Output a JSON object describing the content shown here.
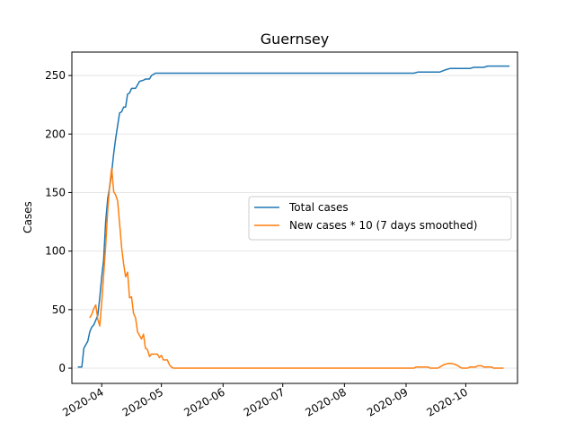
{
  "chart_data": {
    "type": "line",
    "title": "Guernsey",
    "xlabel": "",
    "ylabel": "Cases",
    "xlim": [
      "2020-03-17",
      "2020-10-27"
    ],
    "ylim": [
      -13,
      270
    ],
    "x_ticks": [
      "2020-04",
      "2020-05",
      "2020-06",
      "2020-07",
      "2020-08",
      "2020-09",
      "2020-10"
    ],
    "y_ticks": [
      0,
      50,
      100,
      150,
      200,
      250
    ],
    "grid": "horizontal",
    "legend": "center-right",
    "series": [
      {
        "name": "Total cases",
        "color": "#1f77b4",
        "points": [
          [
            "2020-03-20",
            1
          ],
          [
            "2020-03-22",
            1
          ],
          [
            "2020-03-23",
            17
          ],
          [
            "2020-03-24",
            20
          ],
          [
            "2020-03-25",
            23
          ],
          [
            "2020-03-26",
            31
          ],
          [
            "2020-03-27",
            35
          ],
          [
            "2020-03-28",
            37
          ],
          [
            "2020-03-29",
            41
          ],
          [
            "2020-03-30",
            45
          ],
          [
            "2020-03-31",
            60
          ],
          [
            "2020-04-01",
            78
          ],
          [
            "2020-04-02",
            93
          ],
          [
            "2020-04-03",
            125
          ],
          [
            "2020-04-04",
            145
          ],
          [
            "2020-04-05",
            155
          ],
          [
            "2020-04-06",
            167
          ],
          [
            "2020-04-07",
            183
          ],
          [
            "2020-04-08",
            196
          ],
          [
            "2020-04-09",
            207
          ],
          [
            "2020-04-10",
            218
          ],
          [
            "2020-04-11",
            219
          ],
          [
            "2020-04-12",
            223
          ],
          [
            "2020-04-13",
            223
          ],
          [
            "2020-04-14",
            234
          ],
          [
            "2020-04-15",
            235
          ],
          [
            "2020-04-16",
            239
          ],
          [
            "2020-04-18",
            239
          ],
          [
            "2020-04-19",
            242
          ],
          [
            "2020-04-20",
            245
          ],
          [
            "2020-04-22",
            246
          ],
          [
            "2020-04-23",
            247
          ],
          [
            "2020-04-25",
            247
          ],
          [
            "2020-04-26",
            250
          ],
          [
            "2020-04-28",
            252
          ],
          [
            "2020-09-05",
            252
          ],
          [
            "2020-09-07",
            253
          ],
          [
            "2020-09-18",
            253
          ],
          [
            "2020-09-21",
            255
          ],
          [
            "2020-09-23",
            256
          ],
          [
            "2020-10-03",
            256
          ],
          [
            "2020-10-05",
            257
          ],
          [
            "2020-10-10",
            257
          ],
          [
            "2020-10-12",
            258
          ],
          [
            "2020-10-23",
            258
          ]
        ]
      },
      {
        "name": "New cases * 10 (7 days smoothed)",
        "color": "#ff7f0e",
        "points": [
          [
            "2020-03-26",
            43
          ],
          [
            "2020-03-27",
            46
          ],
          [
            "2020-03-28",
            51
          ],
          [
            "2020-03-29",
            54
          ],
          [
            "2020-03-30",
            42
          ],
          [
            "2020-03-31",
            36
          ],
          [
            "2020-04-01",
            56
          ],
          [
            "2020-04-02",
            80
          ],
          [
            "2020-04-03",
            104
          ],
          [
            "2020-04-04",
            135
          ],
          [
            "2020-04-05",
            156
          ],
          [
            "2020-04-06",
            171
          ],
          [
            "2020-04-07",
            151
          ],
          [
            "2020-04-08",
            148
          ],
          [
            "2020-04-09",
            143
          ],
          [
            "2020-04-10",
            124
          ],
          [
            "2020-04-11",
            103
          ],
          [
            "2020-04-12",
            89
          ],
          [
            "2020-04-13",
            78
          ],
          [
            "2020-04-14",
            82
          ],
          [
            "2020-04-15",
            60
          ],
          [
            "2020-04-16",
            61
          ],
          [
            "2020-04-17",
            47
          ],
          [
            "2020-04-18",
            43
          ],
          [
            "2020-04-19",
            31
          ],
          [
            "2020-04-20",
            28
          ],
          [
            "2020-04-21",
            25
          ],
          [
            "2020-04-22",
            29
          ],
          [
            "2020-04-23",
            17
          ],
          [
            "2020-04-24",
            16
          ],
          [
            "2020-04-25",
            10
          ],
          [
            "2020-04-26",
            12
          ],
          [
            "2020-04-28",
            12
          ],
          [
            "2020-04-29",
            12
          ],
          [
            "2020-04-30",
            9
          ],
          [
            "2020-05-01",
            11
          ],
          [
            "2020-05-02",
            7
          ],
          [
            "2020-05-03",
            7
          ],
          [
            "2020-05-04",
            7
          ],
          [
            "2020-05-05",
            3
          ],
          [
            "2020-05-06",
            1
          ],
          [
            "2020-05-07",
            0
          ],
          [
            "2020-09-05",
            0
          ],
          [
            "2020-09-06",
            1
          ],
          [
            "2020-09-12",
            1
          ],
          [
            "2020-09-13",
            0
          ],
          [
            "2020-09-17",
            0
          ],
          [
            "2020-09-18",
            1
          ],
          [
            "2020-09-20",
            3
          ],
          [
            "2020-09-22",
            4
          ],
          [
            "2020-09-24",
            4
          ],
          [
            "2020-09-26",
            3
          ],
          [
            "2020-09-28",
            1
          ],
          [
            "2020-09-29",
            0
          ],
          [
            "2020-10-02",
            0
          ],
          [
            "2020-10-03",
            1
          ],
          [
            "2020-10-06",
            1
          ],
          [
            "2020-10-07",
            2
          ],
          [
            "2020-10-09",
            2
          ],
          [
            "2020-10-10",
            1
          ],
          [
            "2020-10-14",
            1
          ],
          [
            "2020-10-15",
            0
          ],
          [
            "2020-10-20",
            0
          ]
        ]
      }
    ]
  }
}
